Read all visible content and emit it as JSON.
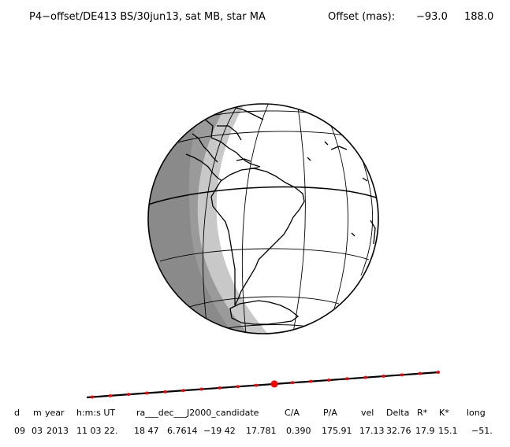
{
  "header": {
    "title": "P4−offset/DE413 BS/30jun13, sat MB, star MA",
    "offset_label": "Offset (mas):",
    "offset_x": "−93.0",
    "offset_y": "188.0"
  },
  "table": {
    "headers": [
      "d",
      "m",
      "year",
      "h:m:s UT",
      "ra___dec___J2000_candidate",
      "C/A",
      "P/A",
      "vel",
      "Delta",
      "R*",
      "K*",
      "long"
    ],
    "values": [
      "09",
      "03",
      "2013",
      "11 03 22.",
      "18 47",
      "6.7614",
      "−19 42",
      "17.781",
      "0.390",
      "175.91",
      "17.13",
      "32.76",
      "17.9",
      "15.1",
      "−51."
    ]
  },
  "colors": {
    "night": "#9a9a9a",
    "twilight": "#c8c8c8",
    "day": "#ffffff",
    "track_dot": "#ff0000"
  },
  "track": {
    "points": 20,
    "highlight_index": 10
  }
}
